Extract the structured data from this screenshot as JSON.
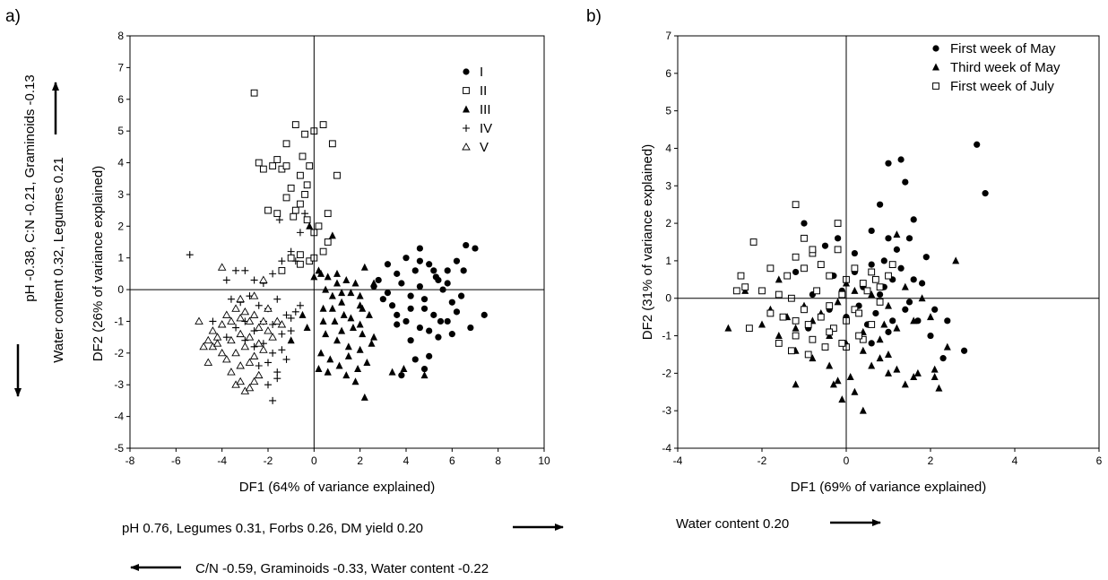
{
  "figure": {
    "panels": [
      {
        "label": "a)",
        "xlabel": "DF1 (64% of variance explained)",
        "ylabel": "DF2 (26% of variance explained)",
        "xlim": [
          -8,
          10
        ],
        "ylim": [
          -5,
          8
        ],
        "xticks": [
          "-8",
          "-6",
          "-4",
          "-2",
          "0",
          "2",
          "4",
          "6",
          "8",
          "10"
        ],
        "yticks": [
          "-5",
          "-4",
          "-3",
          "-2",
          "-1",
          "0",
          "1",
          "2",
          "3",
          "4",
          "5",
          "6",
          "7",
          "8"
        ],
        "loadings_x_positive": "pH 0.76, Legumes 0.31, Forbs 0.26, DM yield 0.20",
        "loadings_x_negative": "C/N -0.59, Graminoids -0.33, Water content -0.22",
        "loadings_y_line1": "pH -0.38, C:N -0.21, Graminoids -0.13",
        "loadings_y_line2": "Water content 0.32, Legumes 0.21",
        "legend": [
          "I",
          "II",
          "III",
          "IV",
          "V"
        ]
      },
      {
        "label": "b)",
        "xlabel": "DF1 (69% of variance explained)",
        "ylabel": "DF2 (31% of variance explained)",
        "xlim": [
          -4,
          6
        ],
        "ylim": [
          -4,
          7
        ],
        "xticks": [
          "-4",
          "-2",
          "0",
          "2",
          "4",
          "6"
        ],
        "yticks": [
          "-4",
          "-3",
          "-2",
          "-1",
          "0",
          "1",
          "2",
          "3",
          "4",
          "5",
          "6",
          "7"
        ],
        "loadings_x_positive": "Water content 0.20",
        "legend": [
          "First week of May",
          "Third week of May",
          "First week of July"
        ]
      }
    ]
  },
  "chart_data": [
    {
      "type": "scatter",
      "title": "",
      "xlabel": "DF1 (64% of variance explained)",
      "ylabel": "DF2 (26% of variance explained)",
      "xlim": [
        -8,
        10
      ],
      "ylim": [
        -5,
        8
      ],
      "grid": false,
      "reference_lines": {
        "x": 0,
        "y": 0
      },
      "legend_position": "top-right",
      "series": [
        {
          "name": "I",
          "marker": "filled-circle",
          "x": [
            3.2,
            3.6,
            4.0,
            4.4,
            4.6,
            5.0,
            5.4,
            5.8,
            6.2,
            6.6,
            7.0,
            6.5,
            4.6,
            4.2,
            3.8,
            3.4,
            4.8,
            5.6,
            6.0,
            5.2,
            4.0,
            4.6,
            5.8,
            3.0,
            2.6,
            3.6,
            4.2,
            5.0,
            5.5,
            6.2,
            6.8,
            7.4,
            4.4,
            5.0,
            3.8,
            4.8,
            5.4,
            6.0,
            4.2,
            2.8,
            3.2,
            6.4,
            5.8,
            5.2,
            4.6,
            3.6,
            4.8,
            5.3
          ],
          "y": [
            0.8,
            0.5,
            1.0,
            0.6,
            1.3,
            0.8,
            0.3,
            0.6,
            0.9,
            1.4,
            1.3,
            0.6,
            0.1,
            -0.2,
            0.2,
            -0.5,
            -0.3,
            0.0,
            -0.4,
            -0.8,
            -1.0,
            -1.2,
            -1.0,
            -0.3,
            0.1,
            -0.8,
            -0.6,
            -1.3,
            -1.0,
            -0.7,
            -1.2,
            -0.8,
            -2.2,
            -2.1,
            -2.7,
            -2.5,
            -1.5,
            -1.4,
            -1.6,
            0.3,
            -0.1,
            -0.2,
            0.2,
            0.6,
            0.9,
            -1.1,
            -0.6,
            0.4
          ]
        },
        {
          "name": "II",
          "marker": "open-square",
          "x": [
            -2.6,
            -2.4,
            -1.6,
            -1.2,
            -0.8,
            -0.4,
            0.0,
            0.4,
            0.8,
            1.0,
            0.6,
            -0.2,
            -0.6,
            -1.0,
            -1.4,
            -1.8,
            -2.2,
            -2.0,
            -1.6,
            -1.2,
            -0.8,
            -0.4,
            0.2,
            0.6,
            -0.6,
            -0.2,
            -1.0,
            -1.4,
            -0.6,
            0.0,
            -0.5,
            -0.3,
            -1.2,
            -0.9,
            -0.6,
            -0.3,
            0.0,
            0.4
          ],
          "y": [
            6.2,
            4.0,
            4.1,
            4.6,
            5.2,
            4.9,
            5.0,
            5.2,
            4.6,
            3.6,
            2.4,
            3.9,
            3.6,
            3.2,
            3.8,
            3.9,
            3.8,
            2.5,
            2.4,
            2.9,
            2.5,
            3.0,
            2.0,
            1.5,
            1.1,
            0.9,
            1.0,
            0.6,
            0.8,
            1.0,
            4.2,
            3.3,
            3.9,
            2.3,
            2.7,
            2.2,
            1.8,
            1.2
          ]
        },
        {
          "name": "III",
          "marker": "filled-triangle",
          "x": [
            0.2,
            0.6,
            1.0,
            1.4,
            1.8,
            2.2,
            2.6,
            0.8,
            1.2,
            1.6,
            2.0,
            2.4,
            0.4,
            0.9,
            1.3,
            1.7,
            2.1,
            0.5,
            1.0,
            1.5,
            2.0,
            2.5,
            0.3,
            0.7,
            1.1,
            1.5,
            1.9,
            2.3,
            0.4,
            0.8,
            1.2,
            1.6,
            2.0,
            0.5,
            1.2,
            2.1,
            0.0,
            -0.5,
            -1.0,
            -0.3,
            0.6,
            1.8,
            2.2,
            3.4,
            3.9,
            4.8,
            0.2,
            0.6,
            1.4,
            0.8,
            -0.2,
            2.0,
            2.6,
            1.0,
            0.3
          ],
          "y": [
            0.6,
            0.4,
            0.5,
            0.3,
            0.2,
            0.7,
            0.2,
            -0.2,
            -0.4,
            -0.1,
            -0.5,
            -0.8,
            -0.6,
            -1.0,
            -0.8,
            -1.2,
            -1.4,
            -1.4,
            -1.6,
            -1.8,
            -1.9,
            -1.7,
            -2.0,
            -2.2,
            -2.4,
            -2.1,
            -2.5,
            -2.3,
            -1.0,
            -0.6,
            -1.3,
            -0.9,
            -0.2,
            0.0,
            -0.1,
            -0.6,
            0.4,
            -0.8,
            -1.6,
            -1.2,
            -2.6,
            -2.9,
            -3.4,
            -2.6,
            -2.5,
            -2.7,
            -2.5,
            -2.6,
            -2.7,
            1.7,
            2.0,
            -1.1,
            -1.5,
            0.2,
            0.5
          ]
        },
        {
          "name": "IV",
          "marker": "plus",
          "x": [
            -5.4,
            -4.4,
            -3.8,
            -3.4,
            -3.0,
            -2.6,
            -2.2,
            -1.8,
            -1.4,
            -1.0,
            -0.6,
            -0.4,
            -3.6,
            -3.2,
            -2.8,
            -2.4,
            -2.0,
            -1.6,
            -1.2,
            -0.8,
            -3.4,
            -3.0,
            -2.6,
            -2.2,
            -1.8,
            -1.4,
            -1.0,
            -3.0,
            -2.6,
            -2.2,
            -1.8,
            -1.4,
            -2.4,
            -2.0,
            -1.6,
            -1.2,
            -2.0,
            -1.6,
            -1.8,
            -1.5,
            -3.8,
            -0.8,
            -0.6,
            -1.0
          ],
          "y": [
            1.1,
            -1.0,
            0.3,
            0.6,
            0.6,
            0.3,
            0.2,
            0.5,
            0.9,
            1.2,
            1.8,
            2.4,
            -0.3,
            -0.4,
            -0.2,
            -0.5,
            -0.6,
            -0.3,
            -0.8,
            -0.7,
            -1.2,
            -1.0,
            -1.3,
            -1.0,
            -1.1,
            -1.4,
            -0.9,
            -1.6,
            -1.8,
            -1.7,
            -2.0,
            -1.9,
            -2.4,
            -2.3,
            -2.6,
            -2.2,
            -3.0,
            -2.8,
            -3.5,
            2.2,
            -1.5,
            0.9,
            -0.5,
            -1.3
          ]
        },
        {
          "name": "V",
          "marker": "open-triangle",
          "x": [
            -5.0,
            -4.8,
            -4.6,
            -4.4,
            -4.2,
            -4.0,
            -3.8,
            -3.6,
            -3.4,
            -3.2,
            -3.0,
            -2.8,
            -2.6,
            -2.4,
            -2.2,
            -2.0,
            -4.4,
            -4.0,
            -3.6,
            -3.2,
            -2.8,
            -2.4,
            -2.0,
            -1.6,
            -4.2,
            -3.8,
            -3.4,
            -3.0,
            -2.6,
            -2.2,
            -1.8,
            -3.6,
            -3.2,
            -2.8,
            -2.4,
            -3.4,
            -3.0,
            -2.6,
            -3.2,
            -2.8,
            -4.6,
            -4.0,
            -3.2,
            -2.6,
            -2.2,
            -1.4
          ],
          "y": [
            -1.0,
            -1.8,
            -1.6,
            -1.3,
            -1.5,
            -1.1,
            -0.8,
            -1.0,
            -0.6,
            -0.9,
            -0.7,
            -1.0,
            -0.8,
            -1.2,
            -1.0,
            -0.6,
            -1.8,
            -2.0,
            -1.6,
            -1.4,
            -1.5,
            -1.7,
            -1.3,
            -1.0,
            -1.7,
            -2.2,
            -2.0,
            -1.8,
            -2.1,
            -1.9,
            -1.5,
            -2.6,
            -2.4,
            -2.3,
            -2.7,
            -3.0,
            -3.2,
            -2.9,
            -2.9,
            -3.1,
            -2.3,
            0.7,
            -0.3,
            -0.2,
            0.3,
            -1.1
          ]
        }
      ]
    },
    {
      "type": "scatter",
      "title": "",
      "xlabel": "DF1 (69% of variance explained)",
      "ylabel": "DF2 (31% of variance explained)",
      "xlim": [
        -4,
        6
      ],
      "ylim": [
        -4,
        7
      ],
      "grid": false,
      "reference_lines": {
        "x": 0,
        "y": 0
      },
      "legend_position": "top-right",
      "series": [
        {
          "name": "First week of May",
          "marker": "filled-circle",
          "x": [
            3.1,
            3.3,
            1.3,
            1.0,
            1.4,
            0.8,
            1.6,
            1.0,
            1.5,
            1.9,
            0.6,
            1.2,
            -0.2,
            -1.0,
            0.2,
            0.6,
            0.9,
            1.3,
            1.6,
            -0.6,
            -0.3,
            0.4,
            0.8,
            1.1,
            1.5,
            2.1,
            2.3,
            2.8,
            2.0,
            -0.8,
            -0.4,
            0.0,
            0.5,
            1.0,
            -0.1,
            0.3,
            0.7,
            1.1,
            -1.2,
            1.8,
            -0.5,
            0.2,
            0.9,
            1.4,
            -0.9,
            0.6,
            1.7,
            2.4
          ],
          "y": [
            4.1,
            2.8,
            3.7,
            3.6,
            3.1,
            2.5,
            2.1,
            1.6,
            1.6,
            1.1,
            1.8,
            1.3,
            1.6,
            2.0,
            1.2,
            0.9,
            1.0,
            0.8,
            0.5,
            0.9,
            0.6,
            0.3,
            0.1,
            0.5,
            -0.1,
            -0.3,
            -1.6,
            -1.4,
            -1.0,
            0.1,
            -0.3,
            -0.5,
            -0.7,
            -0.9,
            0.2,
            -0.2,
            -0.4,
            -0.6,
            0.7,
            0.4,
            1.4,
            0.7,
            0.3,
            -0.3,
            -0.8,
            -1.2,
            -0.6,
            -0.6
          ]
        },
        {
          "name": "Third week of May",
          "marker": "filled-triangle",
          "x": [
            -2.8,
            -2.0,
            -1.6,
            -1.2,
            -0.8,
            -0.4,
            0.0,
            0.4,
            0.8,
            1.2,
            1.6,
            2.0,
            2.4,
            2.6,
            -1.8,
            -1.4,
            -1.0,
            -0.6,
            -0.2,
            0.2,
            0.6,
            1.0,
            1.4,
            1.8,
            -1.2,
            -0.8,
            -0.4,
            0.0,
            0.4,
            0.8,
            1.2,
            1.6,
            -0.2,
            0.2,
            0.6,
            1.0,
            1.4,
            -0.1,
            0.4,
            1.0,
            2.1,
            2.2,
            -1.2,
            -0.3,
            0.1,
            1.2,
            1.7,
            2.1,
            -2.4,
            -1.6,
            0.0,
            0.6,
            -0.6,
            0.9
          ],
          "y": [
            -0.8,
            -0.7,
            -1.0,
            -0.8,
            -0.6,
            -1.0,
            -0.5,
            -0.9,
            -1.1,
            -0.8,
            -0.6,
            -0.5,
            -1.3,
            1.0,
            -0.3,
            -0.5,
            -0.2,
            -0.4,
            -0.1,
            0.2,
            0.1,
            -0.2,
            0.3,
            0.0,
            -1.4,
            -1.6,
            -1.8,
            -1.2,
            -1.4,
            -1.6,
            -1.9,
            -2.1,
            -2.2,
            -2.5,
            -1.8,
            -2.0,
            -2.3,
            -2.7,
            -3.0,
            -1.5,
            -1.9,
            -2.4,
            -2.3,
            -2.3,
            -2.1,
            1.7,
            -2.0,
            -2.1,
            0.2,
            0.5,
            0.4,
            0.7,
            0.9,
            -0.7
          ]
        },
        {
          "name": "First week of July",
          "marker": "open-square",
          "x": [
            -2.5,
            -2.4,
            -2.2,
            -1.8,
            -1.4,
            -1.2,
            -1.0,
            -0.8,
            -0.6,
            -0.4,
            -0.2,
            0.0,
            0.2,
            0.4,
            0.6,
            0.8,
            1.0,
            -2.0,
            -1.6,
            -1.3,
            -1.0,
            -0.7,
            -0.4,
            -0.1,
            0.2,
            0.5,
            0.8,
            -1.8,
            -1.5,
            -1.2,
            -0.9,
            -0.6,
            -0.3,
            0.0,
            0.3,
            0.6,
            -1.6,
            -1.2,
            -0.8,
            -0.4,
            0.0,
            0.4,
            -1.3,
            -0.9,
            -0.5,
            -0.1,
            0.3,
            -1.2,
            -1.0,
            -0.8,
            -0.2,
            -2.3,
            -2.6,
            0.7,
            1.1
          ],
          "y": [
            0.6,
            0.3,
            1.5,
            0.8,
            0.6,
            1.1,
            0.8,
            1.2,
            0.9,
            0.6,
            1.3,
            0.5,
            0.8,
            0.4,
            0.7,
            0.3,
            0.6,
            0.2,
            0.1,
            0.0,
            -0.3,
            0.2,
            -0.2,
            0.1,
            -0.3,
            0.2,
            -0.1,
            -0.4,
            -0.5,
            -0.6,
            -0.7,
            -0.5,
            -0.8,
            -0.6,
            -0.4,
            -0.7,
            -1.2,
            -1.0,
            -1.1,
            -0.9,
            -1.3,
            -1.1,
            -1.4,
            -1.5,
            -1.3,
            -1.2,
            -1.0,
            2.5,
            1.6,
            1.3,
            2.0,
            -0.8,
            0.2,
            0.5,
            0.9
          ]
        }
      ]
    }
  ]
}
